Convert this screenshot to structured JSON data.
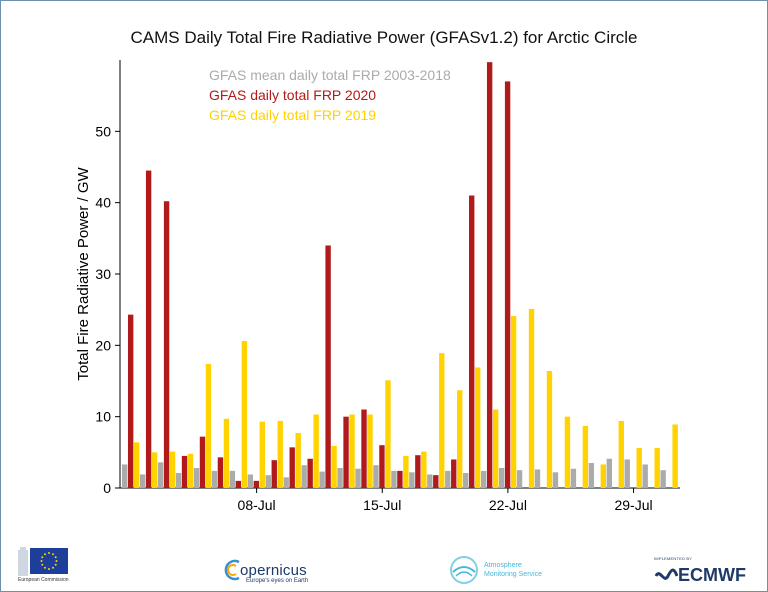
{
  "title": "CAMS Daily Total Fire Radiative Power (GFASv1.2) for Arctic Circle",
  "colors": {
    "mean": "#ababab",
    "y2020": "#b11a1a",
    "y2019": "#ffd200",
    "axis": "#000000"
  },
  "chart_data": {
    "type": "bar",
    "title": "CAMS Daily Total Fire Radiative Power (GFASv1.2) for Arctic Circle",
    "xlabel": "",
    "ylabel": "Total Fire Radiative Power / GW",
    "ylim": [
      0,
      60
    ],
    "yticks": [
      0,
      10,
      20,
      30,
      40,
      50
    ],
    "xticks": [
      {
        "day": 8,
        "label": "08-Jul"
      },
      {
        "day": 15,
        "label": "15-Jul"
      },
      {
        "day": 22,
        "label": "22-Jul"
      },
      {
        "day": 29,
        "label": "29-Jul"
      }
    ],
    "legend_position": "top-left",
    "categories": [
      1,
      2,
      3,
      4,
      5,
      6,
      7,
      8,
      9,
      10,
      11,
      12,
      13,
      14,
      15,
      16,
      17,
      18,
      19,
      20,
      21,
      22,
      23,
      24,
      25,
      26,
      27,
      28,
      29,
      30,
      31
    ],
    "series": [
      {
        "name": "GFAS mean daily total FRP 2003-2018",
        "color": "#ababab",
        "values": [
          3.3,
          1.9,
          3.6,
          2.1,
          2.8,
          2.4,
          2.4,
          1.9,
          1.8,
          1.5,
          3.2,
          2.3,
          2.8,
          2.7,
          3.2,
          2.4,
          2.2,
          1.9,
          2.4,
          2.1,
          2.4,
          2.8,
          2.5,
          2.6,
          2.2,
          2.7,
          3.5,
          4.1,
          4.0,
          3.3,
          2.5
        ]
      },
      {
        "name": "GFAS daily total FRP 2020",
        "color": "#b11a1a",
        "values": [
          24.3,
          44.5,
          40.2,
          4.5,
          7.2,
          4.3,
          1.0,
          1.0,
          3.9,
          5.7,
          4.1,
          34.0,
          10.0,
          11.0,
          6.0,
          2.4,
          4.6,
          1.8,
          4.0,
          41.0,
          59.7,
          57.0,
          null,
          null,
          null,
          null,
          null,
          null,
          null,
          null,
          null
        ]
      },
      {
        "name": "GFAS daily total FRP 2019",
        "color": "#ffd200",
        "values": [
          6.4,
          5.0,
          5.1,
          4.8,
          17.4,
          9.7,
          20.6,
          9.3,
          9.4,
          7.7,
          10.3,
          5.9,
          10.3,
          10.3,
          15.1,
          4.5,
          5.1,
          18.9,
          13.7,
          16.9,
          11.0,
          24.1,
          25.1,
          16.4,
          10.0,
          8.7,
          3.3,
          9.4,
          5.6,
          5.6,
          8.9
        ]
      }
    ]
  },
  "footer": {
    "eu_caption": "European Commission",
    "copernicus_word": "opernicus",
    "copernicus_tag": "Europe's eyes on Earth",
    "atmos_line1": "Atmosphere",
    "atmos_line2": "Monitoring Service",
    "ecmwf_impl": "IMPLEMENTED BY",
    "ecmwf_word": "ECMWF"
  }
}
